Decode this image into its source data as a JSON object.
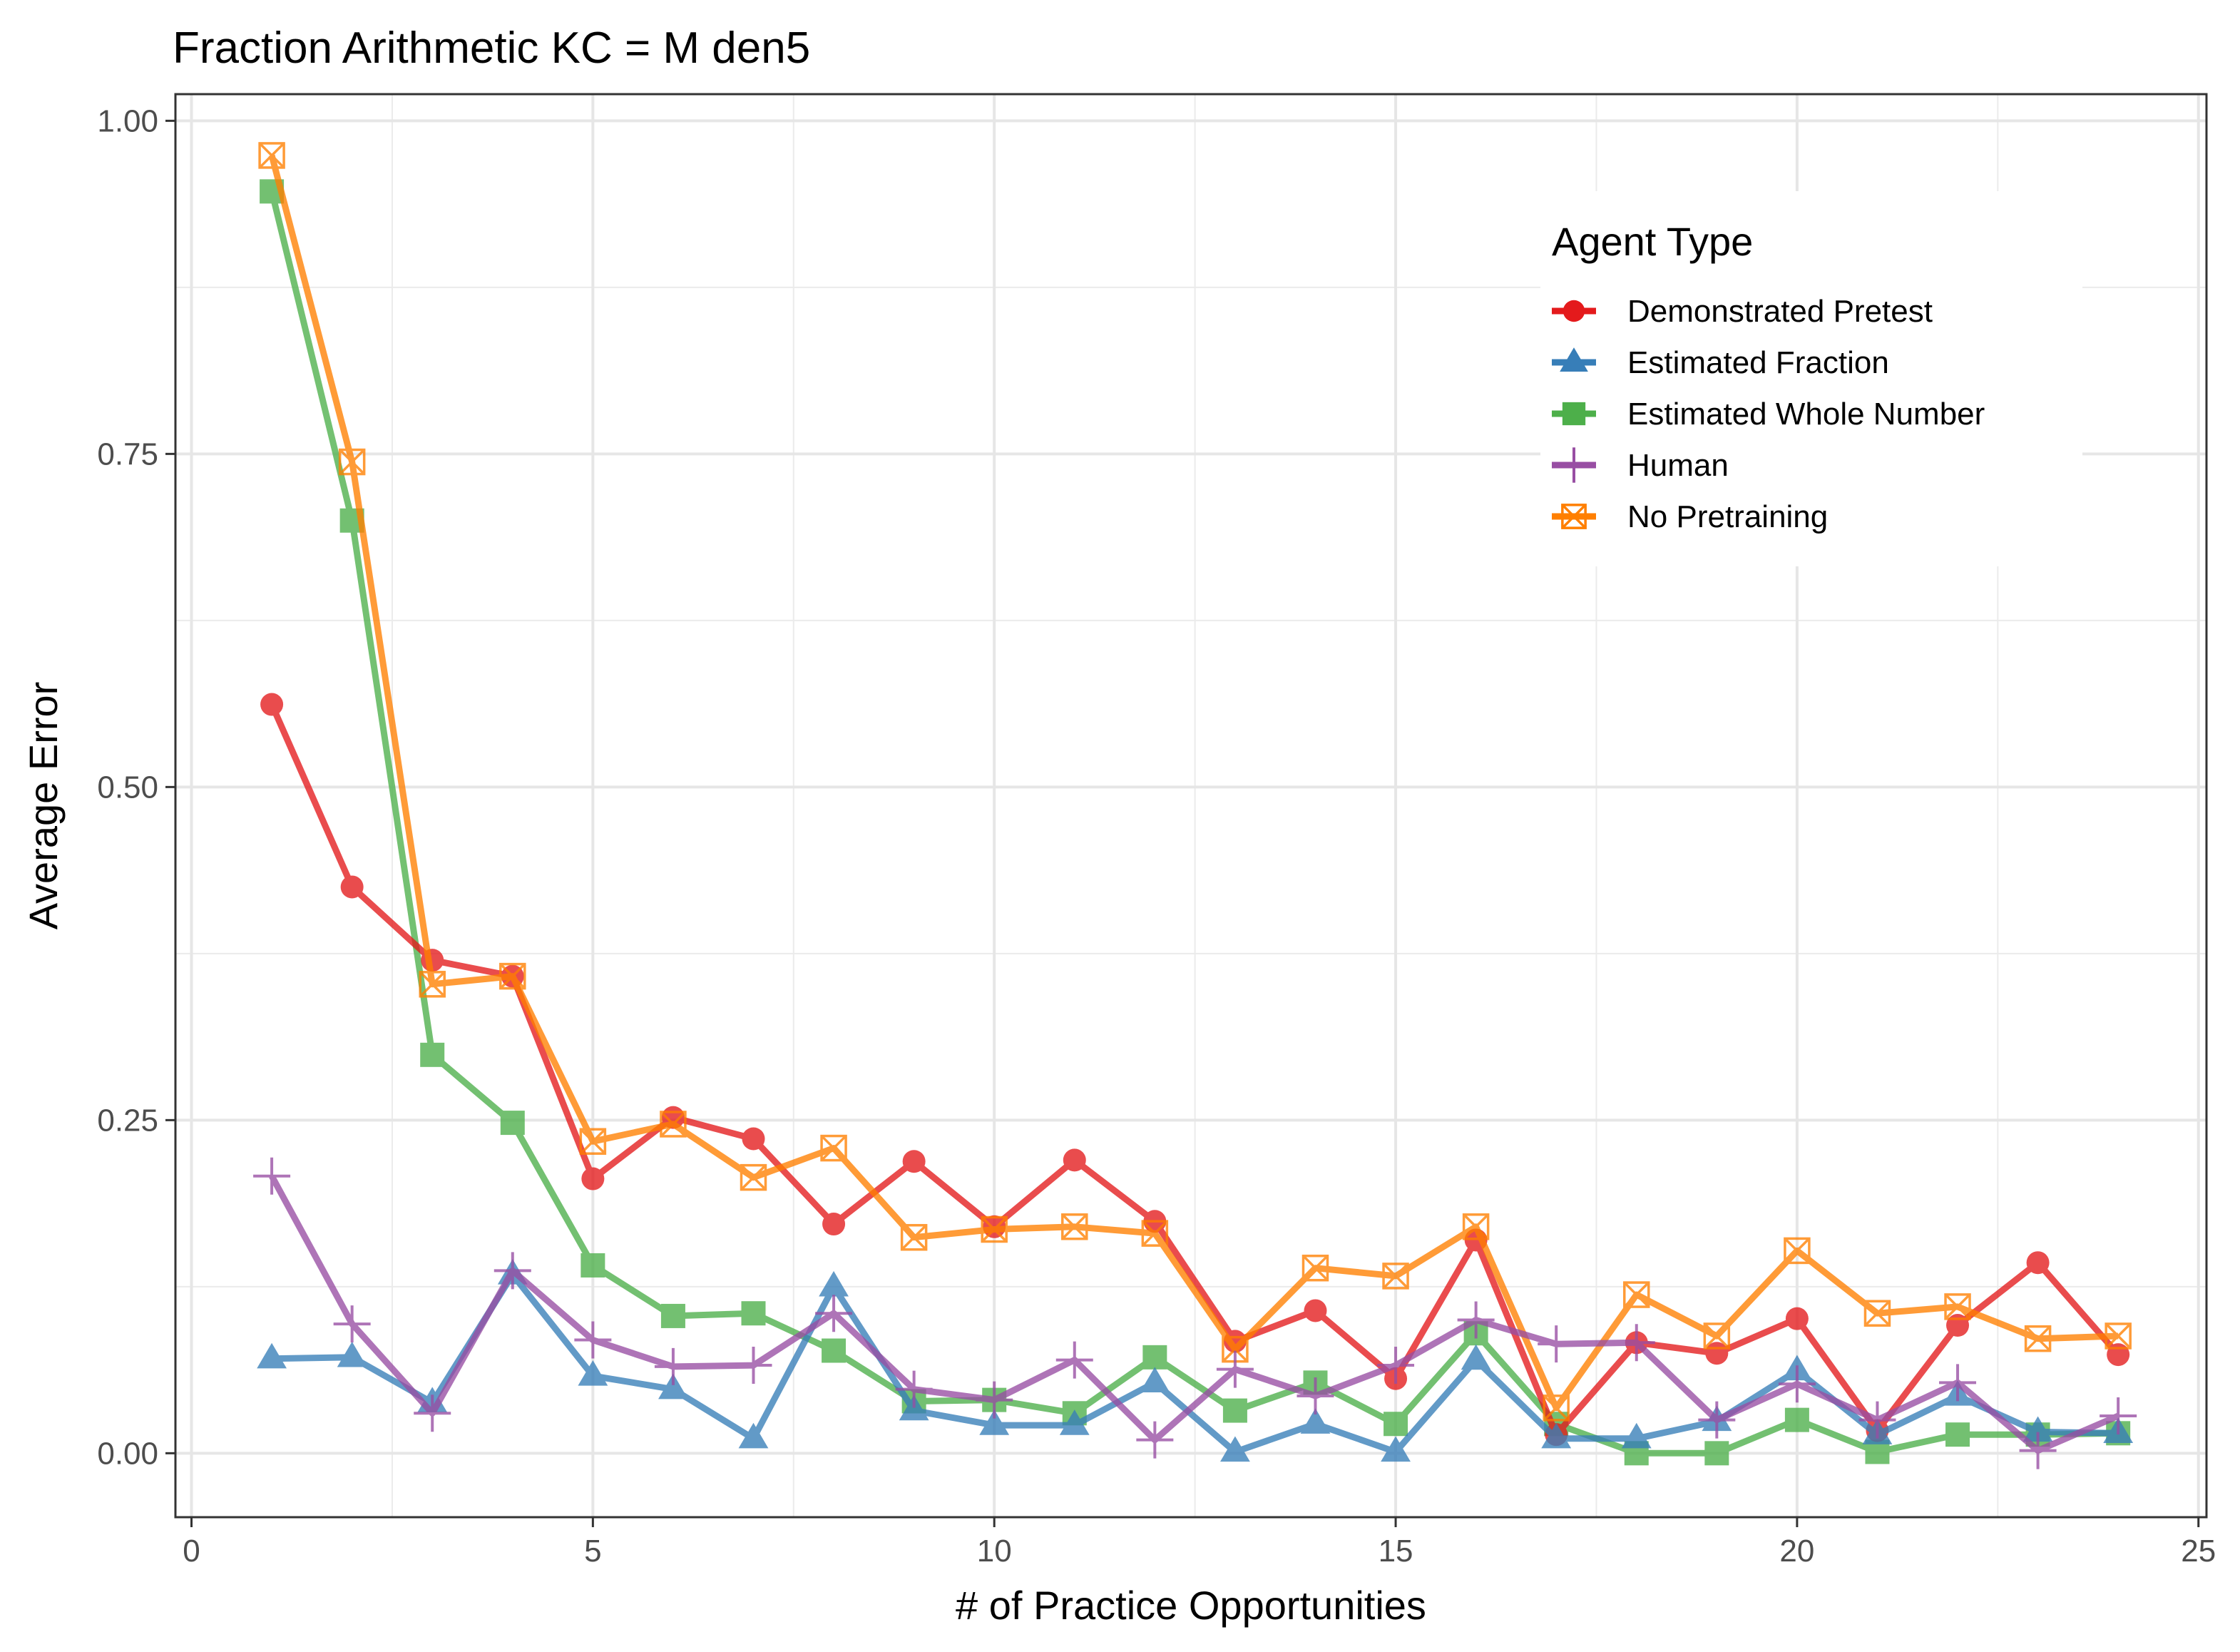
{
  "chart_data": {
    "type": "line",
    "title": "Fraction Arithmetic KC =  M den5",
    "xlabel": "# of Practice Opportunities",
    "ylabel": "Average Error",
    "xlim": [
      -0.2,
      25.1
    ],
    "ylim": [
      -0.048,
      1.02
    ],
    "x_ticks": [
      0,
      5,
      10,
      15,
      20,
      25
    ],
    "x_tick_labels": [
      "0",
      "5",
      "10",
      "15",
      "20",
      "25"
    ],
    "y_ticks": [
      0,
      0.25,
      0.5,
      0.75,
      1.0
    ],
    "y_tick_labels": [
      "0.00",
      "0.25",
      "0.50",
      "0.75",
      "1.00"
    ],
    "grid": true,
    "legend": {
      "title": "Agent Type",
      "placement": "top-right"
    },
    "x": [
      1,
      2,
      3,
      4,
      5,
      6,
      7,
      8,
      9,
      10,
      11,
      12,
      13,
      14,
      15,
      16,
      17,
      18,
      19,
      20,
      21,
      22,
      23,
      24
    ],
    "series": [
      {
        "name": "Demonstrated Pretest",
        "color": "#e41a1c",
        "marker": "circle",
        "values": [
          0.562,
          0.425,
          0.37,
          0.358,
          0.206,
          0.252,
          0.236,
          0.172,
          0.219,
          0.17,
          0.22,
          0.174,
          0.084,
          0.107,
          0.056,
          0.16,
          0.014,
          0.083,
          0.075,
          0.101,
          0.017,
          0.096,
          0.143,
          0.074
        ]
      },
      {
        "name": "Estimated Fraction",
        "color": "#377eb8",
        "marker": "triangle",
        "values": [
          0.071,
          0.072,
          0.038,
          0.134,
          0.058,
          0.048,
          0.011,
          0.125,
          0.032,
          0.021,
          0.021,
          0.053,
          0.001,
          0.022,
          0.001,
          0.07,
          0.011,
          0.011,
          0.024,
          0.062,
          0.014,
          0.043,
          0.016,
          0.015
        ]
      },
      {
        "name": "Estimated Whole Number",
        "color": "#4daf4a",
        "marker": "square",
        "values": [
          0.947,
          0.7,
          0.299,
          0.248,
          0.141,
          0.103,
          0.105,
          0.077,
          0.039,
          0.04,
          0.03,
          0.072,
          0.032,
          0.053,
          0.022,
          0.09,
          0.022,
          0.0,
          0.0,
          0.025,
          0.001,
          0.014,
          0.014,
          0.015
        ]
      },
      {
        "name": "Human",
        "color": "#984ea3",
        "marker": "plus",
        "values": [
          0.208,
          0.097,
          0.03,
          0.137,
          0.085,
          0.065,
          0.066,
          0.105,
          0.048,
          0.04,
          0.07,
          0.01,
          0.063,
          0.043,
          0.066,
          0.1,
          0.082,
          0.083,
          0.025,
          0.052,
          0.025,
          0.053,
          0.002,
          0.028
        ]
      },
      {
        "name": "No Pretraining",
        "color": "#ff7f00",
        "marker": "square-x",
        "values": [
          0.974,
          0.744,
          0.352,
          0.358,
          0.234,
          0.247,
          0.207,
          0.229,
          0.162,
          0.168,
          0.17,
          0.165,
          0.078,
          0.139,
          0.133,
          0.17,
          0.034,
          0.119,
          0.088,
          0.152,
          0.105,
          0.11,
          0.086,
          0.088
        ]
      }
    ]
  }
}
